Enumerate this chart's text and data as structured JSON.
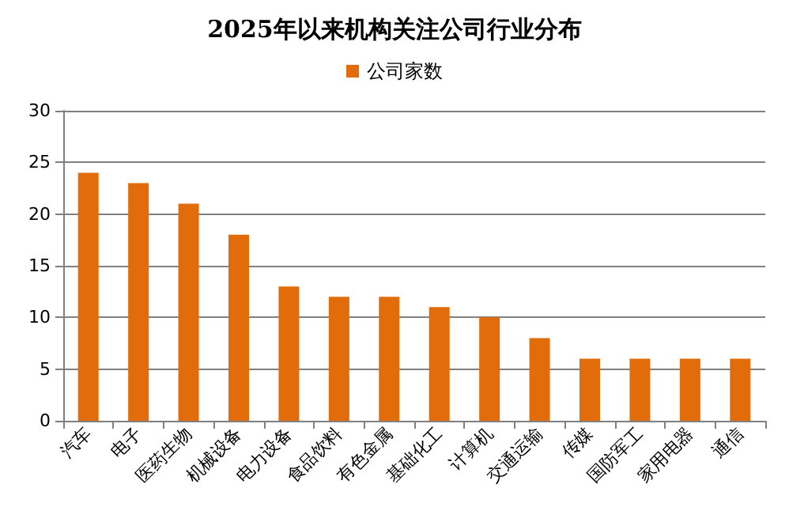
{
  "chart_data": {
    "type": "bar",
    "title": "2025年以来机构关注公司行业分布",
    "categories": [
      "汽车",
      "电子",
      "医药生物",
      "机械设备",
      "电力设备",
      "食品饮料",
      "有色金属",
      "基础化工",
      "计算机",
      "交通运输",
      "传媒",
      "国防军工",
      "家用电器",
      "通信"
    ],
    "series": [
      {
        "name": "公司家数",
        "color": "#e36c0a",
        "values": [
          24,
          23,
          21,
          18,
          13,
          12,
          12,
          11,
          10,
          8,
          6,
          6,
          6,
          6
        ]
      }
    ],
    "ylim": [
      0,
      30
    ],
    "yticks": [
      0,
      5,
      10,
      15,
      20,
      25,
      30
    ],
    "grid": "y",
    "legend": "top"
  }
}
